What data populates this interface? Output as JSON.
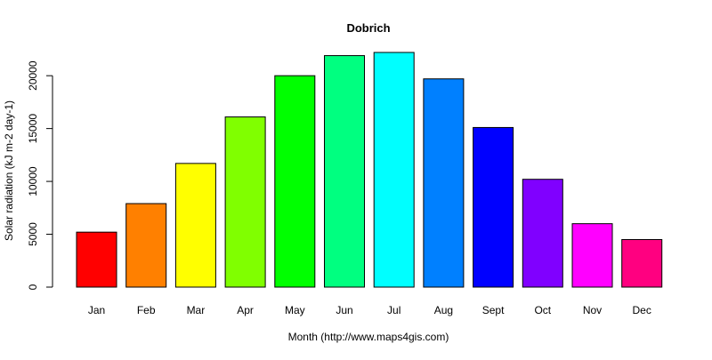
{
  "chart_data": {
    "type": "bar",
    "title": "Dobrich",
    "xlabel": "Month (http://www.maps4gis.com)",
    "ylabel": "Solar radiation (kJ m-2 day-1)",
    "categories": [
      "Jan",
      "Feb",
      "Mar",
      "Apr",
      "May",
      "Jun",
      "Jul",
      "Aug",
      "Sept",
      "Oct",
      "Nov",
      "Dec"
    ],
    "values": [
      5200,
      7900,
      11700,
      16100,
      20000,
      21900,
      22200,
      19700,
      15100,
      10200,
      6000,
      4500
    ],
    "colors": [
      "#FF0000",
      "#FF8000",
      "#FFFF00",
      "#80FF00",
      "#00FF00",
      "#00FF80",
      "#00FFFF",
      "#0080FF",
      "#0000FF",
      "#8000FF",
      "#FF00FF",
      "#FF0080"
    ],
    "ylim": [
      0,
      22200
    ],
    "yticks": [
      0,
      5000,
      10000,
      15000,
      20000
    ],
    "grid": false,
    "legend": "none"
  }
}
